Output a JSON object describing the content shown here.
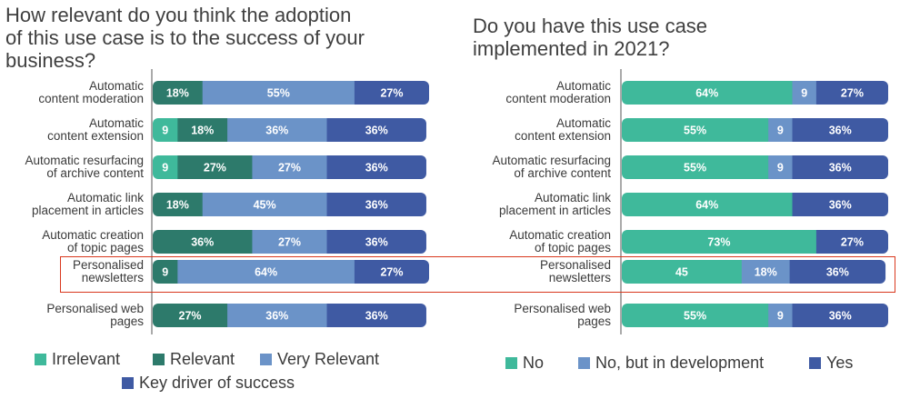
{
  "colors": {
    "irrelevant": "#3fb99b",
    "relevant": "#2d7a6b",
    "very_relevant": "#6b93c8",
    "key_driver": "#3f5aa3",
    "no": "#3fb99b",
    "no_in_dev": "#6b93c8",
    "yes": "#3f5aa3",
    "highlight": "#d9381e"
  },
  "chart_data": [
    {
      "type": "bar",
      "orientation": "horizontal",
      "stacked": true,
      "title": "How relevant do you think the adoption of this use case is to the success of your business?",
      "title_lines": [
        "How relevant do you think the adoption",
        "of this use case is to the success of your",
        "business?"
      ],
      "categories": [
        [
          "Automatic",
          "content moderation"
        ],
        [
          "Automatic",
          "content extension"
        ],
        [
          "Automatic resurfacing",
          "of archive content"
        ],
        [
          "Automatic link",
          "placement in articles"
        ],
        [
          "Automatic creation",
          "of topic pages"
        ],
        [
          "Personalised",
          "newsletters"
        ],
        [
          "Personalised web",
          "pages"
        ]
      ],
      "series": [
        {
          "name": "Irrelevant",
          "values": [
            0,
            9,
            9,
            0,
            0,
            0,
            0
          ],
          "labels": [
            "",
            "9",
            "9",
            "",
            "",
            "",
            ""
          ]
        },
        {
          "name": "Relevant",
          "values": [
            18,
            18,
            27,
            18,
            36,
            9,
            27
          ],
          "labels": [
            "18%",
            "18%",
            "27%",
            "18%",
            "36%",
            "9",
            "27%"
          ]
        },
        {
          "name": "Very Relevant",
          "values": [
            55,
            36,
            27,
            45,
            27,
            64,
            36
          ],
          "labels": [
            "55%",
            "36%",
            "27%",
            "45%",
            "27%",
            "64%",
            "36%"
          ]
        },
        {
          "name": "Key driver of success",
          "values": [
            27,
            36,
            36,
            36,
            36,
            27,
            36
          ],
          "labels": [
            "27%",
            "36%",
            "36%",
            "36%",
            "36%",
            "27%",
            "36%"
          ]
        }
      ],
      "xlim": [
        0,
        100
      ],
      "highlighted_category_index": 5
    },
    {
      "type": "bar",
      "orientation": "horizontal",
      "stacked": true,
      "title": "Do you have this use case implemented in 2021?",
      "title_lines": [
        "Do you have this use case",
        "implemented in 2021?"
      ],
      "categories": [
        [
          "Automatic",
          "content moderation"
        ],
        [
          "Automatic",
          "content extension"
        ],
        [
          "Automatic resurfacing",
          "of archive content"
        ],
        [
          "Automatic link",
          "placement in articles"
        ],
        [
          "Automatic creation",
          "of topic pages"
        ],
        [
          "Personalised",
          "newsletters"
        ],
        [
          "Personalised web",
          "pages"
        ]
      ],
      "series": [
        {
          "name": "No",
          "values": [
            64,
            55,
            55,
            64,
            73,
            45,
            55
          ],
          "labels": [
            "64%",
            "55%",
            "55%",
            "64%",
            "73%",
            "45",
            "55%"
          ]
        },
        {
          "name": "No, but in development",
          "values": [
            9,
            9,
            9,
            0,
            0,
            18,
            9
          ],
          "labels": [
            "9",
            "9",
            "9",
            "",
            "",
            "18%",
            "9"
          ]
        },
        {
          "name": "Yes",
          "values": [
            27,
            36,
            36,
            36,
            27,
            36,
            36
          ],
          "labels": [
            "27%",
            "36%",
            "36%",
            "36%",
            "27%",
            "36%",
            "36%"
          ]
        }
      ],
      "xlim": [
        0,
        100
      ],
      "highlighted_category_index": 5
    }
  ],
  "legend_left": [
    "Irrelevant",
    "Relevant",
    "Very Relevant",
    "Key driver of success"
  ],
  "legend_right": [
    "No",
    "No, but in development",
    "Yes"
  ]
}
